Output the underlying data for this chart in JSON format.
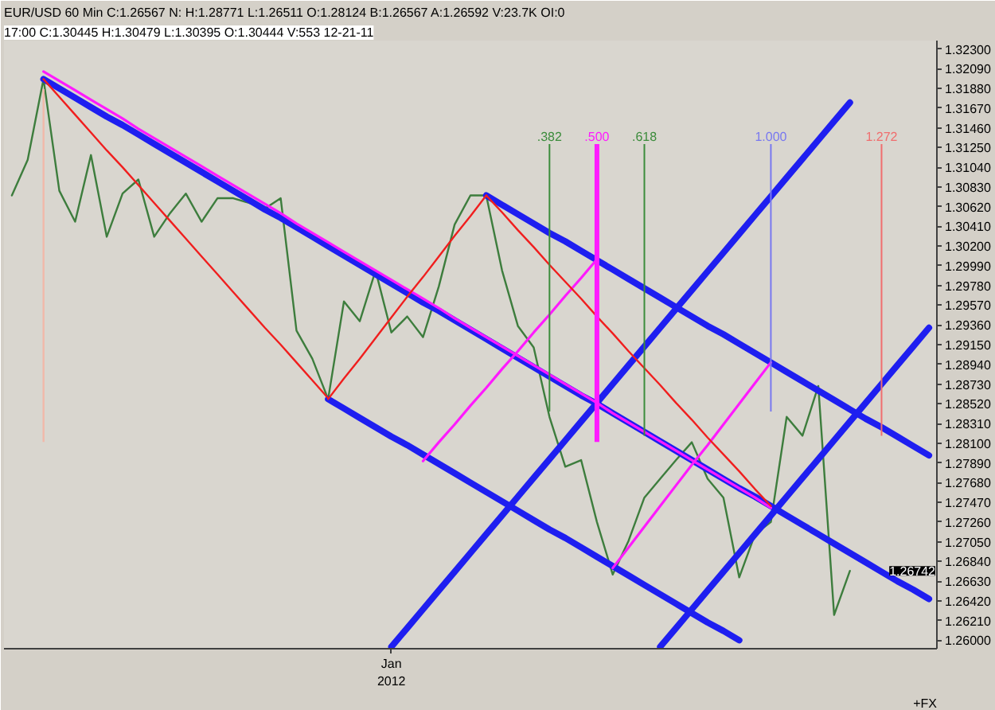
{
  "chart_data": {
    "type": "line",
    "title": "EUR/USD 60 Min C:1.26567 N: H:1.28771 L:1.26511 O:1.28124 B:1.26567 A:1.26592 V:23.7K OI:0",
    "subtitle": "17:00 C:1.30445 H:1.30479 L:1.30395 O:1.30444 V:553 12-21-11",
    "categories": [
      null,
      null,
      null,
      null,
      null,
      null,
      null,
      null,
      null,
      null,
      null,
      null,
      null,
      null,
      null,
      null,
      null,
      null,
      null,
      null,
      null,
      null,
      null,
      null,
      "Jan\n2012",
      null,
      null,
      null,
      null,
      null,
      null,
      null,
      null,
      null,
      null,
      null,
      null,
      null,
      null,
      null,
      null,
      null,
      null,
      null,
      null,
      null,
      null,
      null,
      null,
      null,
      null,
      null,
      null,
      null,
      null,
      null,
      null,
      null,
      null
    ],
    "ylim": [
      1.2591,
      1.3239
    ],
    "yticks": [
      {
        "value": 1.26,
        "label": "1.26000"
      },
      {
        "value": 1.2621,
        "label": "1.26210"
      },
      {
        "value": 1.2642,
        "label": "1.26420"
      },
      {
        "value": 1.2663,
        "label": "1.26630"
      },
      {
        "value": 1.2684,
        "label": "1.26840"
      },
      {
        "value": 1.2705,
        "label": "1.27050"
      },
      {
        "value": 1.2726,
        "label": "1.27260"
      },
      {
        "value": 1.2747,
        "label": "1.27470"
      },
      {
        "value": 1.2768,
        "label": "1.27680"
      },
      {
        "value": 1.2789,
        "label": "1.27890"
      },
      {
        "value": 1.281,
        "label": "1.28100"
      },
      {
        "value": 1.2831,
        "label": "1.28310"
      },
      {
        "value": 1.2852,
        "label": "1.28520"
      },
      {
        "value": 1.2873,
        "label": "1.28730"
      },
      {
        "value": 1.2894,
        "label": "1.28940"
      },
      {
        "value": 1.2915,
        "label": "1.29150"
      },
      {
        "value": 1.2936,
        "label": "1.29360"
      },
      {
        "value": 1.2957,
        "label": "1.29570"
      },
      {
        "value": 1.2978,
        "label": "1.29780"
      },
      {
        "value": 1.2999,
        "label": "1.29990"
      },
      {
        "value": 1.302,
        "label": "1.30200"
      },
      {
        "value": 1.3041,
        "label": "1.30410"
      },
      {
        "value": 1.3062,
        "label": "1.30620"
      },
      {
        "value": 1.3083,
        "label": "1.30830"
      },
      {
        "value": 1.3104,
        "label": "1.31040"
      },
      {
        "value": 1.3125,
        "label": "1.31250"
      },
      {
        "value": 1.3146,
        "label": "1.31460"
      },
      {
        "value": 1.3167,
        "label": "1.31670"
      },
      {
        "value": 1.3188,
        "label": "1.31880"
      },
      {
        "value": 1.3209,
        "label": "1.32090"
      },
      {
        "value": 1.323,
        "label": "1.32300"
      }
    ],
    "grid": false,
    "series": [
      {
        "color": "#3d7d3d",
        "values": [
          1.3074,
          1.3112,
          1.3198,
          1.3079,
          1.3046,
          1.3117,
          1.303,
          1.3076,
          1.3091,
          1.303,
          1.3055,
          1.3076,
          1.3046,
          1.3071,
          1.3071,
          1.3066,
          1.306,
          1.3071,
          1.293,
          1.29,
          1.2857,
          1.2961,
          1.294,
          1.2994,
          1.2928,
          1.2945,
          1.2923,
          1.2977,
          1.3043,
          1.3074,
          1.3074,
          1.2994,
          1.2935,
          1.2912,
          1.2838,
          1.2785,
          1.2792,
          1.2726,
          1.267,
          1.2706,
          1.2752,
          1.2772,
          1.2792,
          1.2811,
          1.2772,
          1.2752,
          1.2667,
          1.2713,
          1.2726,
          1.2838,
          1.2818,
          1.2871,
          1.2627,
          1.2674,
          null,
          null,
          null,
          null,
          null
        ]
      },
      {
        "color": "#1e1ef0",
        "values": [
          null,
          null,
          1.3198,
          1.3188,
          1.3178,
          1.3168,
          1.3158,
          1.3149,
          1.3139,
          1.3129,
          1.3119,
          1.3109,
          1.3099,
          1.3089,
          1.3079,
          1.3069,
          1.3059,
          1.305,
          1.304,
          1.303,
          1.302,
          1.301,
          1.3,
          1.299,
          1.298,
          1.297,
          1.296,
          1.2951,
          1.2941,
          1.2931,
          1.2921,
          1.2911,
          1.2901,
          1.2891,
          1.2881,
          1.2871,
          1.2861,
          1.2852,
          1.2842,
          1.2832,
          1.2822,
          1.2812,
          1.2802,
          1.2792,
          1.2782,
          1.2772,
          1.2762,
          1.2753,
          1.2743,
          1.2733,
          1.2723,
          1.2713,
          1.2703,
          1.2693,
          1.2683,
          1.2673,
          1.2663,
          1.2654,
          1.2644
        ]
      },
      {
        "color": "#1e1ef0",
        "values": [
          null,
          null,
          null,
          null,
          null,
          null,
          null,
          null,
          null,
          null,
          null,
          null,
          null,
          null,
          null,
          null,
          null,
          null,
          null,
          null,
          1.2857,
          1.2847,
          1.2837,
          1.2827,
          1.2817,
          1.2808,
          1.2798,
          1.2788,
          1.2778,
          1.2768,
          1.2758,
          1.2748,
          1.2738,
          1.2728,
          1.2718,
          1.2709,
          1.2699,
          1.2689,
          1.2679,
          1.2669,
          1.2659,
          1.2649,
          1.2639,
          1.2629,
          1.2619,
          1.261,
          1.26,
          null,
          null,
          null,
          null,
          null,
          null,
          null,
          null,
          null,
          null,
          null,
          null
        ]
      },
      {
        "color": "#1e1ef0",
        "values": [
          null,
          null,
          null,
          null,
          null,
          null,
          null,
          null,
          null,
          null,
          null,
          null,
          null,
          null,
          null,
          null,
          null,
          null,
          null,
          null,
          null,
          null,
          null,
          null,
          null,
          null,
          null,
          null,
          null,
          null,
          1.3074,
          1.3064,
          1.3054,
          1.3044,
          1.3034,
          1.3025,
          1.3015,
          1.3005,
          1.2995,
          1.2985,
          1.2975,
          1.2965,
          1.2955,
          1.2945,
          1.2935,
          1.2926,
          1.2916,
          1.2906,
          1.2896,
          1.2886,
          1.2876,
          1.2866,
          1.2856,
          1.2846,
          1.2836,
          1.2827,
          1.2817,
          1.2807,
          1.2797
        ]
      },
      {
        "color": "#1e1ef0",
        "values": [
          null,
          null,
          null,
          null,
          null,
          null,
          null,
          null,
          null,
          null,
          null,
          null,
          null,
          null,
          null,
          null,
          null,
          null,
          null,
          null,
          null,
          null,
          null,
          null,
          1.2593,
          1.2613,
          1.2633,
          1.2653,
          1.2673,
          1.2693,
          1.2713,
          1.2733,
          1.2753,
          1.2773,
          1.2793,
          1.2813,
          1.2833,
          1.2853,
          1.2873,
          1.2893,
          1.2913,
          1.2933,
          1.2953,
          1.2973,
          1.2993,
          1.3013,
          1.3033,
          1.3053,
          1.3073,
          1.3093,
          1.3113,
          1.3133,
          1.3153,
          1.3173,
          null,
          null,
          null,
          null,
          null
        ]
      },
      {
        "color": "#1e1ef0",
        "values": [
          null,
          null,
          null,
          null,
          null,
          null,
          null,
          null,
          null,
          null,
          null,
          null,
          null,
          null,
          null,
          null,
          null,
          null,
          null,
          null,
          null,
          null,
          null,
          null,
          null,
          null,
          null,
          null,
          null,
          null,
          null,
          null,
          null,
          null,
          null,
          null,
          null,
          null,
          null,
          null,
          null,
          1.2593,
          1.2613,
          1.2633,
          1.2653,
          1.2673,
          1.2693,
          1.2713,
          1.2733,
          1.2753,
          1.2773,
          1.2793,
          1.2813,
          1.2833,
          1.2853,
          1.2873,
          1.2893,
          1.2913,
          1.2933
        ]
      },
      {
        "color": "#ff1aff",
        "values": [
          null,
          null,
          1.3206,
          1.3196,
          1.3186,
          1.3176,
          1.3166,
          1.3156,
          1.3145,
          1.3135,
          1.3125,
          1.3115,
          1.3105,
          1.3095,
          1.3085,
          1.3075,
          1.3065,
          1.3055,
          1.3044,
          1.3034,
          1.3024,
          1.3014,
          1.3004,
          1.2994,
          1.2984,
          1.2974,
          1.2964,
          1.2954,
          1.2943,
          1.2933,
          1.2923,
          1.2913,
          1.2903,
          1.2893,
          1.2883,
          1.2873,
          1.2863,
          1.2853,
          1.2842,
          1.2832,
          1.2822,
          1.2812,
          1.2802,
          1.2792,
          1.2782,
          1.2772,
          1.2762,
          1.2752,
          1.2741,
          null,
          null,
          null,
          null,
          null,
          null,
          null,
          null,
          null,
          null
        ]
      },
      {
        "color": "#ff1aff",
        "values": [
          null,
          null,
          null,
          null,
          null,
          null,
          null,
          null,
          null,
          null,
          null,
          null,
          null,
          null,
          null,
          null,
          null,
          null,
          null,
          null,
          null,
          null,
          null,
          null,
          null,
          null,
          1.2791,
          1.2811,
          1.283,
          1.285,
          1.2869,
          1.2889,
          1.2908,
          1.2928,
          1.2947,
          1.2967,
          1.2986,
          1.3006,
          null,
          null,
          null,
          null,
          null,
          null,
          null,
          null,
          null,
          null,
          null,
          null,
          null,
          null,
          null,
          null,
          null,
          null,
          null,
          null,
          null
        ]
      },
      {
        "color": "#ff1aff",
        "values": [
          null,
          null,
          null,
          null,
          null,
          null,
          null,
          null,
          null,
          null,
          null,
          null,
          null,
          null,
          null,
          null,
          null,
          null,
          null,
          null,
          null,
          null,
          null,
          null,
          null,
          null,
          null,
          null,
          null,
          null,
          null,
          null,
          null,
          null,
          null,
          null,
          null,
          null,
          1.2677,
          1.2699,
          1.2721,
          1.2743,
          1.2765,
          1.2787,
          1.2808,
          1.283,
          1.2852,
          1.2874,
          1.2896,
          null,
          null,
          null,
          null,
          null,
          null,
          null,
          null,
          null,
          null
        ]
      },
      {
        "color": "#f01e1e",
        "values": [
          null,
          null,
          1.3198,
          1.3179,
          1.316,
          1.3141,
          1.3122,
          1.3104,
          1.3085,
          1.3066,
          1.3047,
          1.3028,
          1.3009,
          1.299,
          1.2971,
          1.2952,
          1.2933,
          1.2915,
          1.2896,
          1.2877,
          1.2858,
          null,
          null,
          null,
          null,
          null,
          null,
          null,
          null,
          null,
          null,
          null,
          null,
          null,
          null,
          null,
          null,
          null,
          null,
          null,
          null,
          null,
          null,
          null,
          null,
          null,
          null,
          null,
          null,
          null,
          null,
          null,
          null,
          null,
          null,
          null,
          null,
          null,
          null
        ]
      },
      {
        "color": "#f01e1e",
        "values": [
          null,
          null,
          null,
          null,
          null,
          null,
          null,
          null,
          null,
          null,
          null,
          null,
          null,
          null,
          null,
          null,
          null,
          null,
          null,
          null,
          1.2857,
          1.2879,
          1.29,
          1.2922,
          1.2944,
          1.2966,
          1.2987,
          1.3009,
          1.3031,
          1.3052,
          1.3074,
          null,
          null,
          null,
          null,
          null,
          null,
          null,
          null,
          null,
          null,
          null,
          null,
          null,
          null,
          null,
          null,
          null,
          null,
          null,
          null,
          null,
          null,
          null,
          null,
          null,
          null,
          null,
          null
        ]
      },
      {
        "color": "#f01e1e",
        "values": [
          null,
          null,
          null,
          null,
          null,
          null,
          null,
          null,
          null,
          null,
          null,
          null,
          null,
          null,
          null,
          null,
          null,
          null,
          null,
          null,
          null,
          null,
          null,
          null,
          null,
          null,
          null,
          null,
          null,
          null,
          1.3074,
          1.3056,
          1.3037,
          1.3019,
          1.3,
          1.2982,
          1.2964,
          1.2945,
          1.2927,
          1.2908,
          1.289,
          1.2872,
          1.2853,
          1.2835,
          1.2816,
          1.2798,
          1.278,
          1.2761,
          1.2743,
          null,
          null,
          null,
          null,
          null,
          null,
          null,
          null,
          null,
          null
        ]
      }
    ],
    "annotations": [
      ".382",
      ".500",
      ".618",
      "1.000",
      "1.272",
      "1.26742",
      "+FX"
    ]
  }
}
